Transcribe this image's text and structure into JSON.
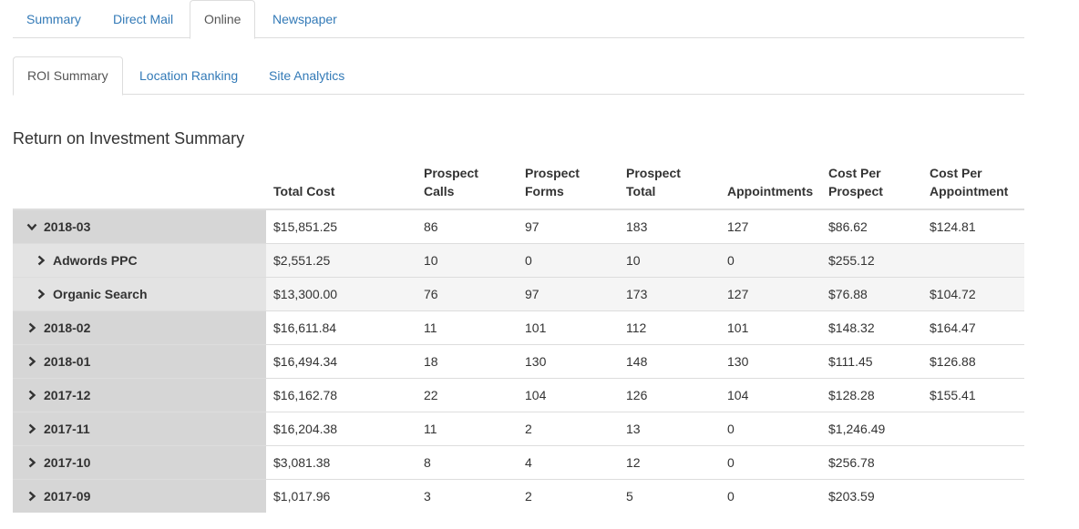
{
  "primary_tabs": [
    {
      "label": "Summary",
      "active": false
    },
    {
      "label": "Direct Mail",
      "active": false
    },
    {
      "label": "Online",
      "active": true
    },
    {
      "label": "Newspaper",
      "active": false
    }
  ],
  "secondary_tabs": [
    {
      "label": "ROI Summary",
      "active": true
    },
    {
      "label": "Location Ranking",
      "active": false
    },
    {
      "label": "Site Analytics",
      "active": false
    }
  ],
  "section_title": "Return on Investment Summary",
  "table": {
    "headers": [
      "",
      "Total Cost",
      "Prospect Calls",
      "Prospect Forms",
      "Prospect Total",
      "Appointments",
      "Cost Per Prospect",
      "Cost Per Appointment"
    ],
    "rows": [
      {
        "label": "2018-03",
        "expanded": true,
        "child": false,
        "cells": [
          "$15,851.25",
          "86",
          "97",
          "183",
          "127",
          "$86.62",
          "$124.81"
        ]
      },
      {
        "label": "Adwords PPC",
        "expanded": false,
        "child": true,
        "cells": [
          "$2,551.25",
          "10",
          "0",
          "10",
          "0",
          "$255.12",
          ""
        ]
      },
      {
        "label": "Organic Search",
        "expanded": false,
        "child": true,
        "cells": [
          "$13,300.00",
          "76",
          "97",
          "173",
          "127",
          "$76.88",
          "$104.72"
        ]
      },
      {
        "label": "2018-02",
        "expanded": false,
        "child": false,
        "cells": [
          "$16,611.84",
          "11",
          "101",
          "112",
          "101",
          "$148.32",
          "$164.47"
        ]
      },
      {
        "label": "2018-01",
        "expanded": false,
        "child": false,
        "cells": [
          "$16,494.34",
          "18",
          "130",
          "148",
          "130",
          "$111.45",
          "$126.88"
        ]
      },
      {
        "label": "2017-12",
        "expanded": false,
        "child": false,
        "cells": [
          "$16,162.78",
          "22",
          "104",
          "126",
          "104",
          "$128.28",
          "$155.41"
        ]
      },
      {
        "label": "2017-11",
        "expanded": false,
        "child": false,
        "cells": [
          "$16,204.38",
          "11",
          "2",
          "13",
          "0",
          "$1,246.49",
          ""
        ]
      },
      {
        "label": "2017-10",
        "expanded": false,
        "child": false,
        "cells": [
          "$3,081.38",
          "8",
          "4",
          "12",
          "0",
          "$256.78",
          ""
        ]
      },
      {
        "label": "2017-09",
        "expanded": false,
        "child": false,
        "cells": [
          "$1,017.96",
          "3",
          "2",
          "5",
          "0",
          "$203.59",
          ""
        ]
      }
    ]
  }
}
